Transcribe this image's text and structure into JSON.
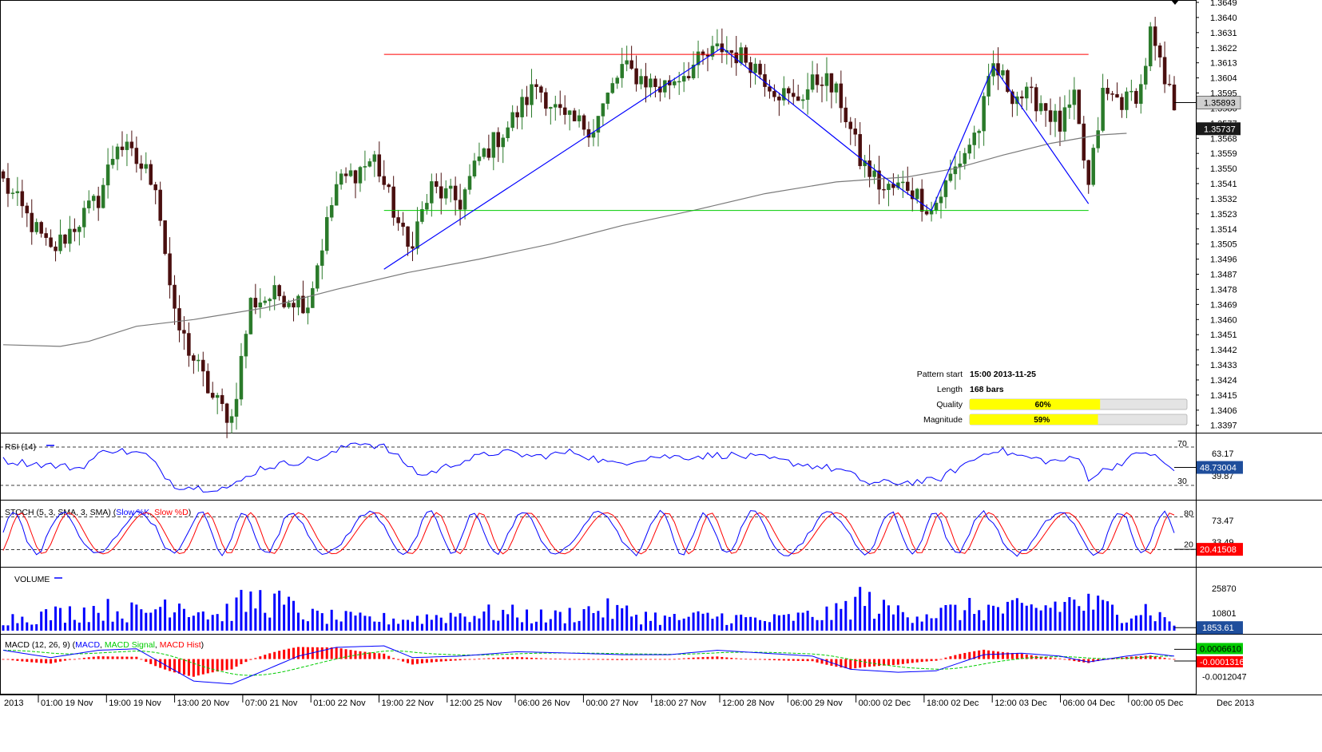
{
  "colors": {
    "frame": "#000000",
    "bull_candle": "#2a7a2a",
    "bear_candle": "#4a0f0f",
    "resistance": "#ff0000",
    "support": "#00cc00",
    "pattern": "#0000ff",
    "ma": "#7a7a7a",
    "rsi": "#0000ff",
    "stoch_k": "#0000ff",
    "stoch_d": "#ff0000",
    "volume": "#0000ff",
    "macd": "#0000ff",
    "macd_signal": "#00cc00",
    "macd_hist": "#ff0000",
    "bar_fill": "#ffff00",
    "stoch_badge": "#ff0000",
    "rsi_badge": "#1f4e9c",
    "volume_badge": "#1f4e9c",
    "price_badge_dark": "#1a1a1a",
    "price_badge_light": "#cfcfcf",
    "macd_badge_pos": "#00cc00",
    "macd_badge_neg": "#ff0000"
  },
  "pattern_info": {
    "pattern_start_label": "Pattern start",
    "pattern_start_value": "15:00 2013-11-25",
    "length_label": "Length",
    "length_value": "168 bars",
    "quality_label": "Quality",
    "quality_value": "60%",
    "quality_fraction": 0.6,
    "magnitude_label": "Magnitude",
    "magnitude_value": "59%",
    "magnitude_fraction": 0.59
  },
  "chart_data": {
    "type": "candlestick",
    "price_axis": {
      "ticks": [
        "1.3649",
        "1.3640",
        "1.3631",
        "1.3622",
        "1.3613",
        "1.3604",
        "1.3595",
        "1.3586",
        "1.3577",
        "1.3568",
        "1.3559",
        "1.3550",
        "1.3541",
        "1.3532",
        "1.3523",
        "1.3514",
        "1.3505",
        "1.3496",
        "1.3487",
        "1.3478",
        "1.3469",
        "1.3460",
        "1.3451",
        "1.3442",
        "1.3433",
        "1.3424",
        "1.3415",
        "1.3406",
        "1.3397"
      ],
      "range": [
        1.3394,
        1.3649
      ],
      "current_price": "1.35893",
      "ma_price": "1.35737"
    },
    "time_axis": [
      "2013",
      "01:00 19 Nov",
      "19:00 19 Nov",
      "13:00 20 Nov",
      "07:00 21 Nov",
      "01:00 22 Nov",
      "19:00 22 Nov",
      "12:00 25 Nov",
      "06:00 26 Nov",
      "00:00 27 Nov",
      "18:00 27 Nov",
      "12:00 28 Nov",
      "06:00 29 Nov",
      "00:00 02 Dec",
      "18:00 02 Dec",
      "12:00 03 Dec",
      "06:00 04 Dec",
      "00:00 05 Dec",
      "Dec 2013"
    ],
    "resistance_level": 1.3618,
    "support_level": 1.3525,
    "ma_path": [
      [
        0,
        1.3445
      ],
      [
        12,
        1.3444
      ],
      [
        18,
        1.3447
      ],
      [
        28,
        1.3456
      ],
      [
        40,
        1.346
      ],
      [
        55,
        1.3467
      ],
      [
        70,
        1.3478
      ],
      [
        85,
        1.3488
      ],
      [
        100,
        1.3496
      ],
      [
        115,
        1.3505
      ],
      [
        130,
        1.3516
      ],
      [
        145,
        1.3525
      ],
      [
        160,
        1.3535
      ],
      [
        175,
        1.3542
      ],
      [
        190,
        1.3545
      ],
      [
        200,
        1.355
      ],
      [
        210,
        1.3558
      ],
      [
        220,
        1.3565
      ],
      [
        230,
        1.357
      ],
      [
        236,
        1.3571
      ]
    ],
    "pattern_points": [
      [
        80,
        1.349
      ],
      [
        151,
        1.3622
      ],
      [
        185,
        1.3545
      ],
      [
        195,
        1.3525
      ],
      [
        208,
        1.3611
      ],
      [
        228,
        1.3529
      ]
    ],
    "key_points": [
      [
        0,
        1.3542
      ],
      [
        10,
        1.35
      ],
      [
        20,
        1.3532
      ],
      [
        24,
        1.3566
      ],
      [
        32,
        1.3542
      ],
      [
        36,
        1.346
      ],
      [
        44,
        1.3413
      ],
      [
        48,
        1.3401
      ],
      [
        52,
        1.347
      ],
      [
        58,
        1.3475
      ],
      [
        64,
        1.347
      ],
      [
        70,
        1.354
      ],
      [
        78,
        1.3556
      ],
      [
        82,
        1.3525
      ],
      [
        85,
        1.3502
      ],
      [
        90,
        1.3538
      ],
      [
        96,
        1.353
      ],
      [
        100,
        1.3556
      ],
      [
        106,
        1.3575
      ],
      [
        112,
        1.36
      ],
      [
        118,
        1.3578
      ],
      [
        124,
        1.3575
      ],
      [
        130,
        1.361
      ],
      [
        138,
        1.3598
      ],
      [
        146,
        1.3613
      ],
      [
        151,
        1.3622
      ],
      [
        157,
        1.3614
      ],
      [
        162,
        1.3598
      ],
      [
        166,
        1.359
      ],
      [
        172,
        1.3605
      ],
      [
        176,
        1.359
      ],
      [
        180,
        1.3555
      ],
      [
        185,
        1.3537
      ],
      [
        190,
        1.354
      ],
      [
        195,
        1.3525
      ],
      [
        200,
        1.355
      ],
      [
        205,
        1.3575
      ],
      [
        208,
        1.3611
      ],
      [
        212,
        1.3595
      ],
      [
        218,
        1.359
      ],
      [
        222,
        1.3575
      ],
      [
        225,
        1.359
      ],
      [
        228,
        1.3538
      ],
      [
        231,
        1.3594
      ],
      [
        236,
        1.359
      ],
      [
        239,
        1.3598
      ],
      [
        241,
        1.363
      ],
      [
        244,
        1.36
      ],
      [
        246,
        1.3589
      ]
    ],
    "volume_key_points": [
      [
        0,
        8000
      ],
      [
        10,
        11000
      ],
      [
        20,
        15000
      ],
      [
        30,
        12000
      ],
      [
        35,
        22000
      ],
      [
        45,
        10000
      ],
      [
        50,
        18000
      ],
      [
        55,
        22000
      ],
      [
        65,
        10000
      ],
      [
        75,
        8000
      ],
      [
        85,
        8000
      ],
      [
        95,
        11000
      ],
      [
        105,
        12000
      ],
      [
        115,
        9000
      ],
      [
        125,
        15000
      ],
      [
        140,
        8000
      ],
      [
        150,
        10000
      ],
      [
        160,
        7000
      ],
      [
        175,
        12000
      ],
      [
        180,
        22000
      ],
      [
        185,
        14000
      ],
      [
        195,
        12000
      ],
      [
        205,
        15000
      ],
      [
        215,
        14000
      ],
      [
        225,
        20000
      ],
      [
        235,
        13000
      ],
      [
        240,
        15000
      ],
      [
        246,
        5000
      ]
    ],
    "indicators": {
      "rsi": {
        "label": "RSI (14)",
        "levels": [
          "70",
          "30"
        ],
        "range": [
          20,
          80
        ],
        "tick": "63.17",
        "tick2": "39.87",
        "current": "48.73004",
        "key_points": [
          [
            0,
            56
          ],
          [
            8,
            52
          ],
          [
            16,
            48
          ],
          [
            22,
            68
          ],
          [
            30,
            62
          ],
          [
            36,
            30
          ],
          [
            42,
            27
          ],
          [
            48,
            28
          ],
          [
            54,
            48
          ],
          [
            62,
            55
          ],
          [
            68,
            60
          ],
          [
            74,
            76
          ],
          [
            80,
            70
          ],
          [
            88,
            40
          ],
          [
            96,
            55
          ],
          [
            104,
            65
          ],
          [
            112,
            60
          ],
          [
            120,
            65
          ],
          [
            128,
            52
          ],
          [
            136,
            60
          ],
          [
            144,
            60
          ],
          [
            152,
            62
          ],
          [
            160,
            58
          ],
          [
            168,
            52
          ],
          [
            176,
            46
          ],
          [
            182,
            32
          ],
          [
            188,
            33
          ],
          [
            196,
            35
          ],
          [
            202,
            52
          ],
          [
            208,
            68
          ],
          [
            214,
            60
          ],
          [
            220,
            55
          ],
          [
            226,
            58
          ],
          [
            228,
            38
          ],
          [
            234,
            52
          ],
          [
            240,
            66
          ],
          [
            246,
            46
          ]
        ]
      },
      "stoch": {
        "label": "STOCH (5, 3, SMA, 3, SMA)",
        "k_name": "Slow %K",
        "d_name": "Slow %D",
        "levels": [
          "80",
          "20"
        ],
        "range": [
          0,
          100
        ],
        "tick": "73.47",
        "tick2": "33.49",
        "current": "20.41508"
      },
      "volume": {
        "label": "VOLUME",
        "ticks": [
          "25870",
          "10801"
        ],
        "range": [
          0,
          36000
        ],
        "current": "1853.61"
      },
      "macd": {
        "label": "MACD (12, 26, 9)",
        "macd_name": "MACD",
        "signal_name": "MACD Signal",
        "hist_name": "MACD Hist",
        "range": [
          -0.0022,
          0.0015
        ],
        "tick": "-0.0012047",
        "current_macd": "0.0006610",
        "current_hist": "-0.0001316",
        "key_points": [
          [
            0,
            0.0006
          ],
          [
            10,
            0.0001
          ],
          [
            20,
            0.0006
          ],
          [
            28,
            0.0007
          ],
          [
            34,
            -0.0004
          ],
          [
            40,
            -0.0015
          ],
          [
            48,
            -0.0017
          ],
          [
            54,
            -0.0009
          ],
          [
            62,
            0.0002
          ],
          [
            70,
            0.0008
          ],
          [
            80,
            0.0009
          ],
          [
            86,
            0.0001
          ],
          [
            96,
            0.0002
          ],
          [
            108,
            0.0005
          ],
          [
            120,
            0.0004
          ],
          [
            130,
            0.0003
          ],
          [
            140,
            0.0003
          ],
          [
            150,
            0.0006
          ],
          [
            160,
            0.0004
          ],
          [
            170,
            0.0002
          ],
          [
            178,
            -0.0007
          ],
          [
            188,
            -0.0009
          ],
          [
            196,
            -0.0008
          ],
          [
            206,
            0.0003
          ],
          [
            214,
            0.0004
          ],
          [
            222,
            0.0002
          ],
          [
            228,
            -0.0002
          ],
          [
            236,
            0.0002
          ],
          [
            241,
            0.0004
          ],
          [
            246,
            0.0002
          ]
        ]
      }
    }
  }
}
